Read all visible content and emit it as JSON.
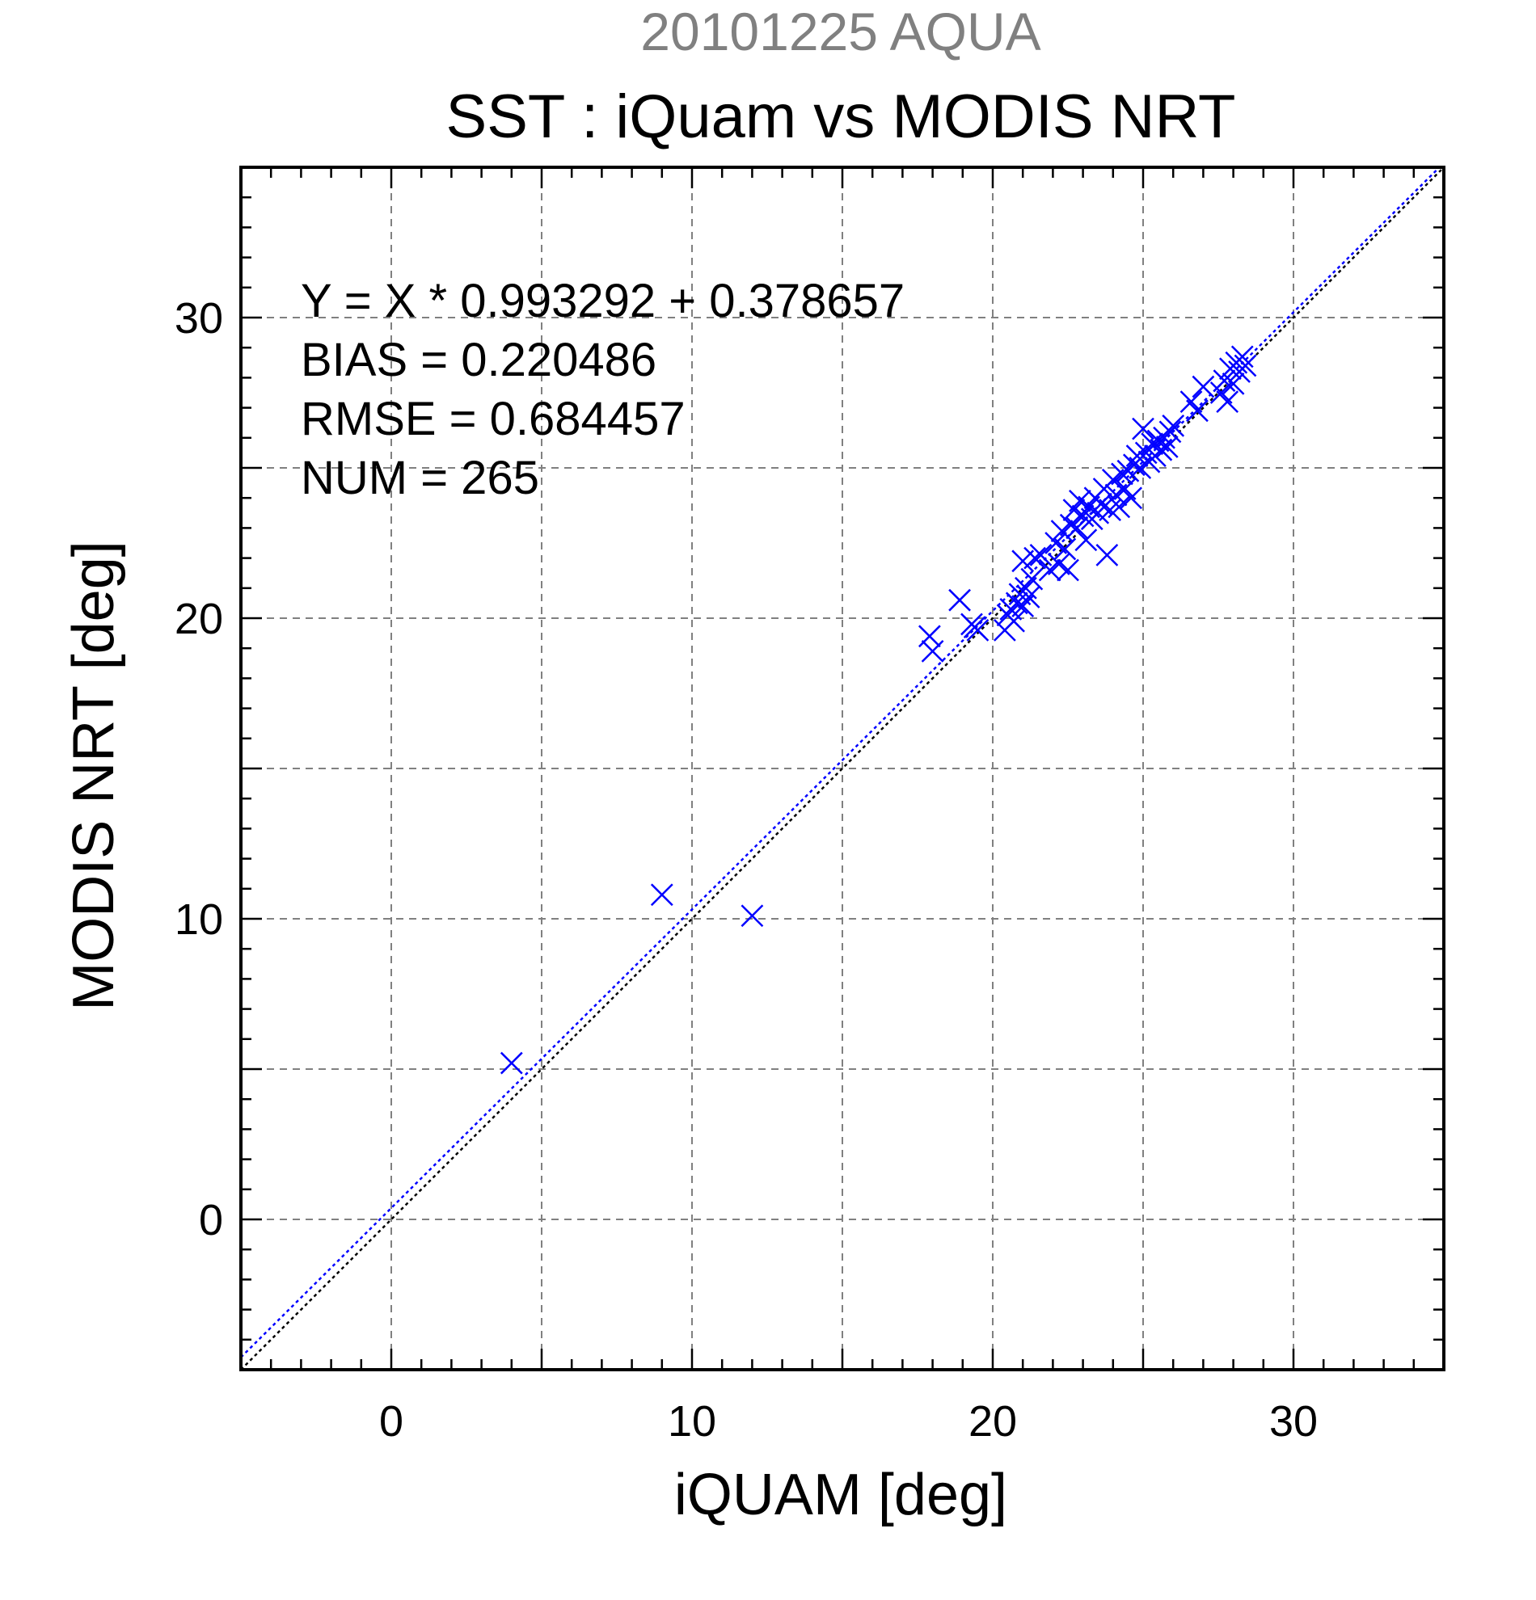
{
  "colors": {
    "series": "#0000ff",
    "identity_line": "#000000",
    "grid": "#808080",
    "top_title": "#808080"
  },
  "chart_data": {
    "type": "scatter",
    "top_title": "20101225 AQUA",
    "title": "SST : iQuam vs MODIS NRT",
    "xlabel": "iQUAM [deg]",
    "ylabel": "MODIS NRT [deg]",
    "xlim": [
      -5,
      35
    ],
    "ylim": [
      -5,
      35
    ],
    "x_ticks": [
      0,
      10,
      20,
      30
    ],
    "y_ticks": [
      0,
      10,
      20,
      30
    ],
    "grid": true,
    "marker": "x",
    "stats": [
      "Y = X * 0.993292 + 0.378657",
      "BIAS = 0.220486",
      "RMSE = 0.684457",
      "NUM = 265"
    ],
    "fit_line": {
      "slope": 0.993292,
      "intercept": 0.378657
    },
    "identity_line": {
      "slope": 1,
      "intercept": 0
    },
    "points": [
      [
        4.0,
        5.2
      ],
      [
        9.0,
        10.8
      ],
      [
        12.0,
        10.1
      ],
      [
        17.9,
        19.4
      ],
      [
        18.0,
        18.9
      ],
      [
        18.9,
        20.6
      ],
      [
        19.3,
        19.8
      ],
      [
        19.4,
        19.7
      ],
      [
        19.5,
        19.6
      ],
      [
        20.4,
        19.6
      ],
      [
        20.5,
        20.1
      ],
      [
        20.6,
        20.3
      ],
      [
        20.7,
        19.9
      ],
      [
        20.8,
        20.5
      ],
      [
        20.9,
        20.8
      ],
      [
        21.0,
        20.4
      ],
      [
        21.0,
        21.9
      ],
      [
        21.1,
        21.0
      ],
      [
        21.2,
        20.7
      ],
      [
        21.3,
        21.3
      ],
      [
        21.4,
        22.0
      ],
      [
        21.6,
        22.1
      ],
      [
        21.9,
        21.6
      ],
      [
        22.1,
        22.5
      ],
      [
        22.2,
        21.8
      ],
      [
        22.3,
        22.9
      ],
      [
        22.4,
        22.3
      ],
      [
        22.5,
        21.6
      ],
      [
        22.6,
        23.1
      ],
      [
        22.7,
        23.6
      ],
      [
        22.8,
        23.0
      ],
      [
        22.9,
        23.9
      ],
      [
        23.0,
        23.4
      ],
      [
        23.1,
        22.6
      ],
      [
        23.2,
        23.7
      ],
      [
        23.3,
        23.3
      ],
      [
        23.4,
        24.0
      ],
      [
        23.5,
        23.5
      ],
      [
        23.6,
        23.8
      ],
      [
        23.7,
        24.3
      ],
      [
        23.8,
        22.1
      ],
      [
        23.9,
        23.6
      ],
      [
        24.0,
        24.6
      ],
      [
        24.1,
        24.1
      ],
      [
        24.2,
        23.7
      ],
      [
        24.3,
        24.8
      ],
      [
        24.4,
        24.3
      ],
      [
        24.5,
        24.9
      ],
      [
        24.6,
        24.0
      ],
      [
        24.7,
        25.1
      ],
      [
        24.8,
        25.4
      ],
      [
        24.9,
        25.0
      ],
      [
        25.0,
        26.3
      ],
      [
        25.1,
        25.5
      ],
      [
        25.2,
        25.2
      ],
      [
        25.3,
        25.8
      ],
      [
        25.4,
        25.4
      ],
      [
        25.5,
        25.9
      ],
      [
        25.6,
        25.6
      ],
      [
        25.7,
        26.0
      ],
      [
        25.8,
        25.7
      ],
      [
        25.9,
        26.2
      ],
      [
        26.0,
        26.4
      ],
      [
        26.6,
        27.2
      ],
      [
        26.8,
        26.9
      ],
      [
        27.0,
        27.7
      ],
      [
        27.6,
        27.5
      ],
      [
        27.7,
        27.9
      ],
      [
        27.8,
        27.2
      ],
      [
        27.9,
        28.3
      ],
      [
        28.0,
        27.8
      ],
      [
        28.1,
        28.5
      ],
      [
        28.2,
        28.2
      ],
      [
        28.3,
        28.7
      ],
      [
        28.4,
        28.4
      ]
    ]
  }
}
